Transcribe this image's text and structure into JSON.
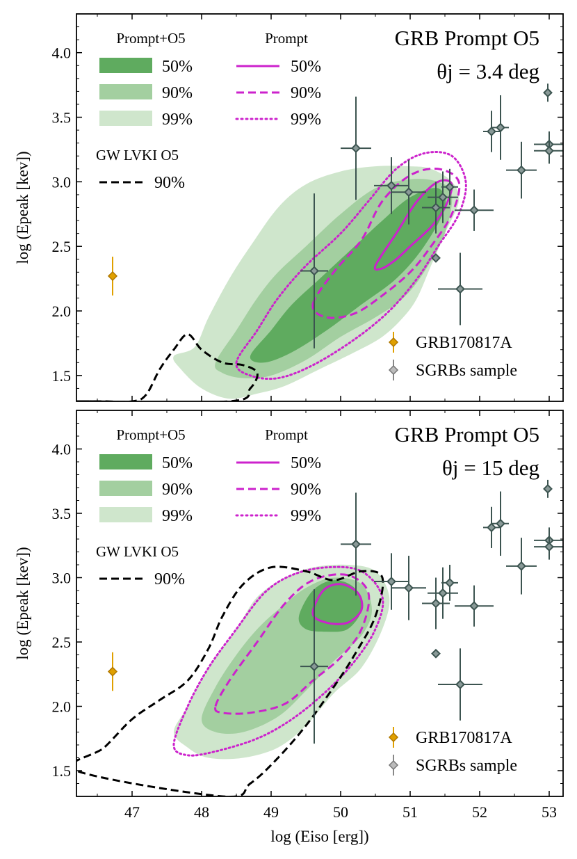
{
  "chart_data": [
    {
      "type": "contour+scatter",
      "title": "GRB Prompt O5",
      "subtitle": "θj = 3.4 deg",
      "xlabel": "log (Eiso [erg])",
      "ylabel": "log (Epeak [kev])",
      "xlim": [
        46.2,
        53.2
      ],
      "ylim": [
        1.3,
        4.3
      ],
      "xticks": [
        47,
        48,
        49,
        50,
        51,
        52,
        53
      ],
      "yticks": [
        1.5,
        2.0,
        2.5,
        3.0,
        3.5,
        4.0
      ],
      "legend_prompt_o5": {
        "title": "Prompt+O5",
        "levels": [
          "50%",
          "90%",
          "99%"
        ]
      },
      "legend_prompt": {
        "title": "Prompt",
        "levels": [
          "50%",
          "90%",
          "99%"
        ]
      },
      "legend_gw": {
        "title": "GW LVKI O5",
        "levels": [
          "90%"
        ]
      },
      "legend_points": [
        "GRB170817A",
        "SGRBs sample"
      ],
      "contours": {
        "prompt_o5_99": [
          [
            47.6,
            1.65
          ],
          [
            47.9,
            1.72
          ],
          [
            48.1,
            1.95
          ],
          [
            48.4,
            2.25
          ],
          [
            48.7,
            2.5
          ],
          [
            49.1,
            2.8
          ],
          [
            49.5,
            2.98
          ],
          [
            50.0,
            3.08
          ],
          [
            50.5,
            3.12
          ],
          [
            51.0,
            3.12
          ],
          [
            51.3,
            3.1
          ],
          [
            51.6,
            3.0
          ],
          [
            51.7,
            2.85
          ],
          [
            51.5,
            2.6
          ],
          [
            51.3,
            2.35
          ],
          [
            51.1,
            2.1
          ],
          [
            50.9,
            1.95
          ],
          [
            50.6,
            1.8
          ],
          [
            50.2,
            1.68
          ],
          [
            49.7,
            1.55
          ],
          [
            49.2,
            1.42
          ],
          [
            48.8,
            1.36
          ],
          [
            48.4,
            1.32
          ],
          [
            48.0,
            1.4
          ],
          [
            47.7,
            1.55
          ]
        ],
        "prompt_o5_90": [
          [
            48.2,
            1.6
          ],
          [
            48.5,
            1.85
          ],
          [
            48.8,
            2.1
          ],
          [
            49.1,
            2.3
          ],
          [
            49.5,
            2.5
          ],
          [
            50.0,
            2.75
          ],
          [
            50.5,
            2.95
          ],
          [
            51.0,
            3.02
          ],
          [
            51.4,
            3.0
          ],
          [
            51.6,
            2.9
          ],
          [
            51.5,
            2.6
          ],
          [
            51.2,
            2.3
          ],
          [
            50.9,
            2.1
          ],
          [
            50.5,
            1.95
          ],
          [
            50.0,
            1.8
          ],
          [
            49.5,
            1.62
          ],
          [
            49.0,
            1.5
          ],
          [
            48.6,
            1.48
          ],
          [
            48.3,
            1.52
          ]
        ],
        "prompt_o5_50": [
          [
            48.7,
            1.65
          ],
          [
            49.0,
            1.85
          ],
          [
            49.3,
            2.05
          ],
          [
            49.7,
            2.25
          ],
          [
            50.2,
            2.5
          ],
          [
            50.6,
            2.7
          ],
          [
            51.0,
            2.88
          ],
          [
            51.4,
            2.95
          ],
          [
            51.5,
            2.8
          ],
          [
            51.2,
            2.5
          ],
          [
            50.8,
            2.25
          ],
          [
            50.3,
            2.05
          ],
          [
            49.8,
            1.85
          ],
          [
            49.3,
            1.68
          ],
          [
            48.9,
            1.6
          ]
        ],
        "prompt_99": [
          [
            48.5,
            1.6
          ],
          [
            48.8,
            1.85
          ],
          [
            49.1,
            2.1
          ],
          [
            49.5,
            2.35
          ],
          [
            50.0,
            2.6
          ],
          [
            50.4,
            2.85
          ],
          [
            50.8,
            3.1
          ],
          [
            51.2,
            3.22
          ],
          [
            51.6,
            3.2
          ],
          [
            51.8,
            3.0
          ],
          [
            51.7,
            2.75
          ],
          [
            51.4,
            2.5
          ],
          [
            51.1,
            2.25
          ],
          [
            50.7,
            2.0
          ],
          [
            50.2,
            1.78
          ],
          [
            49.6,
            1.58
          ],
          [
            49.1,
            1.48
          ],
          [
            48.7,
            1.5
          ]
        ],
        "prompt_90": [
          [
            49.6,
            2.05
          ],
          [
            49.9,
            2.3
          ],
          [
            50.3,
            2.55
          ],
          [
            50.6,
            2.85
          ],
          [
            51.0,
            3.05
          ],
          [
            51.4,
            3.1
          ],
          [
            51.7,
            3.0
          ],
          [
            51.6,
            2.75
          ],
          [
            51.3,
            2.5
          ],
          [
            51.0,
            2.3
          ],
          [
            50.6,
            2.12
          ],
          [
            50.2,
            1.98
          ],
          [
            49.8,
            1.95
          ]
        ],
        "prompt_50": [
          [
            50.5,
            2.35
          ],
          [
            50.8,
            2.6
          ],
          [
            51.1,
            2.85
          ],
          [
            51.4,
            3.0
          ],
          [
            51.6,
            2.98
          ],
          [
            51.5,
            2.8
          ],
          [
            51.3,
            2.65
          ],
          [
            51.0,
            2.5
          ],
          [
            50.8,
            2.4
          ],
          [
            50.6,
            2.33
          ]
        ],
        "gw_90": [
          [
            46.3,
            1.3
          ],
          [
            46.6,
            1.3
          ],
          [
            47.0,
            1.3
          ],
          [
            47.2,
            1.35
          ],
          [
            47.4,
            1.55
          ],
          [
            47.6,
            1.7
          ],
          [
            47.8,
            1.82
          ],
          [
            48.0,
            1.7
          ],
          [
            48.3,
            1.6
          ],
          [
            48.6,
            1.58
          ],
          [
            48.8,
            1.52
          ],
          [
            48.7,
            1.4
          ],
          [
            48.4,
            1.3
          ]
        ]
      },
      "grb170817a": {
        "x": 46.72,
        "y": 2.27,
        "yerr": 0.15,
        "color": "#e0a000"
      },
      "sgrbs": [
        {
          "x": 50.22,
          "y": 3.26,
          "xerr": 0.22,
          "yerr": 0.4
        },
        {
          "x": 49.62,
          "y": 2.31,
          "xerr": 0.2,
          "yerr": 0.6
        },
        {
          "x": 50.73,
          "y": 2.97,
          "xerr": 0.25,
          "yerr": 0.22
        },
        {
          "x": 50.98,
          "y": 2.92,
          "xerr": 0.25,
          "yerr": 0.25
        },
        {
          "x": 51.37,
          "y": 2.8,
          "xerr": 0.2,
          "yerr": 0.2
        },
        {
          "x": 51.47,
          "y": 2.88,
          "xerr": 0.22,
          "yerr": 0.2
        },
        {
          "x": 51.57,
          "y": 2.96,
          "xerr": 0.12,
          "yerr": 0.14
        },
        {
          "x": 51.37,
          "y": 2.41,
          "xerr": 0,
          "yerr": 0
        },
        {
          "x": 51.92,
          "y": 2.78,
          "xerr": 0.28,
          "yerr": 0.16
        },
        {
          "x": 51.72,
          "y": 2.17,
          "xerr": 0.32,
          "yerr": 0.28
        },
        {
          "x": 52.17,
          "y": 3.39,
          "xerr": 0.12,
          "yerr": 0.16
        },
        {
          "x": 52.3,
          "y": 3.42,
          "xerr": 0.12,
          "yerr": 0.25
        },
        {
          "x": 52.6,
          "y": 3.09,
          "xerr": 0.22,
          "yerr": 0.22
        },
        {
          "x": 52.98,
          "y": 3.69,
          "xerr": 0,
          "yerr": 0.07
        },
        {
          "x": 53.0,
          "y": 3.29,
          "xerr": 0.22,
          "yerr": 0.1
        },
        {
          "x": 53.0,
          "y": 3.24,
          "xerr": 0.22,
          "yerr": 0.1
        }
      ]
    },
    {
      "type": "contour+scatter",
      "title": "GRB Prompt O5",
      "subtitle": "θj = 15 deg",
      "xlabel": "log (Eiso [erg])",
      "ylabel": "log (Epeak [kev])",
      "xlim": [
        46.2,
        53.2
      ],
      "ylim": [
        1.3,
        4.3
      ],
      "xticks": [
        47,
        48,
        49,
        50,
        51,
        52,
        53
      ],
      "yticks": [
        1.5,
        2.0,
        2.5,
        3.0,
        3.5,
        4.0
      ],
      "legend_prompt_o5": {
        "title": "Prompt+O5",
        "levels": [
          "50%",
          "90%",
          "99%"
        ]
      },
      "legend_prompt": {
        "title": "Prompt",
        "levels": [
          "50%",
          "90%",
          "99%"
        ]
      },
      "legend_gw": {
        "title": "GW LVKI O5",
        "levels": [
          "90%"
        ]
      },
      "legend_points": [
        "GRB170817A",
        "SGRBs sample"
      ],
      "contours": {
        "prompt_o5_99": [
          [
            47.6,
            1.8
          ],
          [
            47.8,
            2.0
          ],
          [
            48.1,
            2.3
          ],
          [
            48.5,
            2.6
          ],
          [
            48.8,
            2.85
          ],
          [
            49.2,
            3.0
          ],
          [
            49.6,
            3.08
          ],
          [
            50.1,
            3.1
          ],
          [
            50.5,
            3.05
          ],
          [
            50.7,
            2.85
          ],
          [
            50.6,
            2.6
          ],
          [
            50.3,
            2.3
          ],
          [
            49.9,
            2.1
          ],
          [
            49.5,
            1.85
          ],
          [
            49.1,
            1.68
          ],
          [
            48.6,
            1.6
          ],
          [
            48.1,
            1.6
          ],
          [
            47.8,
            1.68
          ]
        ],
        "prompt_o5_90": [
          [
            48.0,
            1.9
          ],
          [
            48.2,
            2.15
          ],
          [
            48.5,
            2.4
          ],
          [
            48.8,
            2.6
          ],
          [
            49.1,
            2.75
          ],
          [
            49.5,
            2.92
          ],
          [
            49.9,
            3.0
          ],
          [
            50.3,
            2.95
          ],
          [
            50.45,
            2.75
          ],
          [
            50.3,
            2.55
          ],
          [
            49.9,
            2.35
          ],
          [
            49.5,
            2.12
          ],
          [
            49.1,
            1.92
          ],
          [
            48.6,
            1.8
          ],
          [
            48.2,
            1.8
          ]
        ],
        "prompt_o5_50": [
          [
            49.4,
            2.7
          ],
          [
            49.6,
            2.9
          ],
          [
            49.9,
            2.98
          ],
          [
            50.2,
            2.92
          ],
          [
            50.3,
            2.75
          ],
          [
            50.1,
            2.6
          ],
          [
            49.8,
            2.58
          ],
          [
            49.5,
            2.6
          ]
        ],
        "prompt_99": [
          [
            47.6,
            1.7
          ],
          [
            47.8,
            2.0
          ],
          [
            48.1,
            2.3
          ],
          [
            48.5,
            2.6
          ],
          [
            48.9,
            2.88
          ],
          [
            49.3,
            3.02
          ],
          [
            49.8,
            3.08
          ],
          [
            50.3,
            3.05
          ],
          [
            50.6,
            2.85
          ],
          [
            50.5,
            2.6
          ],
          [
            50.2,
            2.35
          ],
          [
            49.8,
            2.12
          ],
          [
            49.3,
            1.9
          ],
          [
            48.8,
            1.75
          ],
          [
            48.2,
            1.65
          ],
          [
            47.8,
            1.62
          ]
        ],
        "prompt_90": [
          [
            48.2,
            2.0
          ],
          [
            48.4,
            2.2
          ],
          [
            48.8,
            2.5
          ],
          [
            49.2,
            2.8
          ],
          [
            49.6,
            2.98
          ],
          [
            50.1,
            3.02
          ],
          [
            50.4,
            2.88
          ],
          [
            50.3,
            2.6
          ],
          [
            50.0,
            2.38
          ],
          [
            49.6,
            2.2
          ],
          [
            49.2,
            2.02
          ],
          [
            48.7,
            1.95
          ],
          [
            48.3,
            1.95
          ]
        ],
        "prompt_50": [
          [
            49.6,
            2.72
          ],
          [
            49.75,
            2.9
          ],
          [
            50.0,
            2.95
          ],
          [
            50.25,
            2.88
          ],
          [
            50.3,
            2.75
          ],
          [
            50.1,
            2.65
          ],
          [
            49.8,
            2.65
          ]
        ],
        "gw_90": [
          [
            46.2,
            1.5
          ],
          [
            46.6,
            1.68
          ],
          [
            47.0,
            1.9
          ],
          [
            47.4,
            2.05
          ],
          [
            47.8,
            2.2
          ],
          [
            48.1,
            2.45
          ],
          [
            48.3,
            2.7
          ],
          [
            48.6,
            2.95
          ],
          [
            49.0,
            3.08
          ],
          [
            49.5,
            3.05
          ],
          [
            49.9,
            2.98
          ],
          [
            50.3,
            3.05
          ],
          [
            50.6,
            3.0
          ],
          [
            50.5,
            2.7
          ],
          [
            50.2,
            2.4
          ],
          [
            49.9,
            2.15
          ],
          [
            49.5,
            1.85
          ],
          [
            49.1,
            1.6
          ],
          [
            48.7,
            1.4
          ],
          [
            48.3,
            1.3
          ]
        ]
      },
      "grb170817a": {
        "x": 46.72,
        "y": 2.27,
        "yerr": 0.15,
        "color": "#e0a000"
      },
      "sgrbs": [
        {
          "x": 50.22,
          "y": 3.26,
          "xerr": 0.22,
          "yerr": 0.4
        },
        {
          "x": 49.62,
          "y": 2.31,
          "xerr": 0.2,
          "yerr": 0.6
        },
        {
          "x": 50.73,
          "y": 2.97,
          "xerr": 0.25,
          "yerr": 0.22
        },
        {
          "x": 50.98,
          "y": 2.92,
          "xerr": 0.25,
          "yerr": 0.25
        },
        {
          "x": 51.37,
          "y": 2.8,
          "xerr": 0.2,
          "yerr": 0.2
        },
        {
          "x": 51.47,
          "y": 2.88,
          "xerr": 0.22,
          "yerr": 0.2
        },
        {
          "x": 51.57,
          "y": 2.96,
          "xerr": 0.12,
          "yerr": 0.14
        },
        {
          "x": 51.37,
          "y": 2.41,
          "xerr": 0,
          "yerr": 0
        },
        {
          "x": 51.92,
          "y": 2.78,
          "xerr": 0.28,
          "yerr": 0.16
        },
        {
          "x": 51.72,
          "y": 2.17,
          "xerr": 0.32,
          "yerr": 0.28
        },
        {
          "x": 52.17,
          "y": 3.39,
          "xerr": 0.12,
          "yerr": 0.16
        },
        {
          "x": 52.3,
          "y": 3.42,
          "xerr": 0.12,
          "yerr": 0.25
        },
        {
          "x": 52.6,
          "y": 3.09,
          "xerr": 0.22,
          "yerr": 0.22
        },
        {
          "x": 52.98,
          "y": 3.69,
          "xerr": 0,
          "yerr": 0.07
        },
        {
          "x": 53.0,
          "y": 3.29,
          "xerr": 0.22,
          "yerr": 0.1
        },
        {
          "x": 53.0,
          "y": 3.24,
          "xerr": 0.22,
          "yerr": 0.1
        }
      ]
    }
  ],
  "colors": {
    "green_50": "#5fab5f",
    "green_90": "#a3cfa0",
    "green_99": "#cfe6cc",
    "magenta": "#cc22cc",
    "gw": "#000000",
    "sgrb": "#3c5450",
    "sgrb_marker": "#8a9a98",
    "grb": "#e0a000"
  }
}
